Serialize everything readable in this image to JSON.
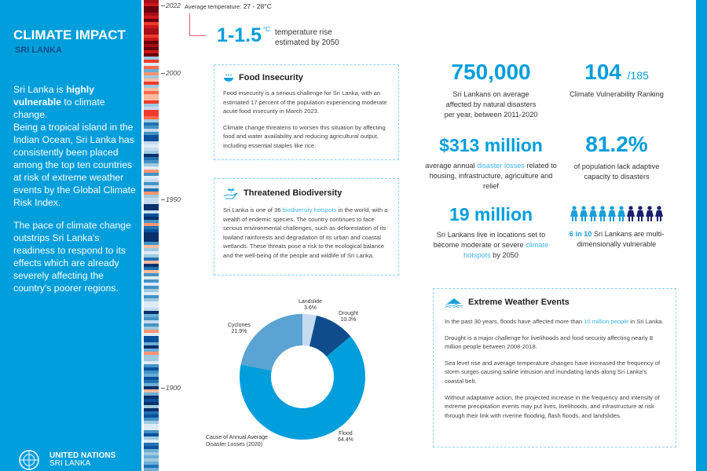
{
  "left": {
    "title": "CLIMATE IMPACT",
    "subtitle": "SRI LANKA",
    "p1_a": "Sri Lanka is ",
    "p1_b": "highly vulnerable",
    "p1_c": " to climate change.",
    "p2": "Being a tropical island in the Indian Ocean, Sri Lanka has consistently been placed among the top ten countries at risk of extreme weather events by the Global Climate Risk Index.",
    "p3": "The pace of climate change outstrips Sri Lanka's readiness to respond to its effects which are already severely affecting the country's poorer regions.",
    "logo_line1": "UNITED NATIONS",
    "logo_line2": "SRI LANKA"
  },
  "stripes": {
    "year_labels": [
      "2022",
      "2000",
      "1950",
      "1900"
    ],
    "avg_label": "Average temperature:",
    "avg_value": "27 - 28°C"
  },
  "rise": {
    "value": "1-1.5",
    "unit": "°C",
    "line1": "temperature rise",
    "line2": "estimated by 2050"
  },
  "food": {
    "title": "Food Insecurity",
    "p1": "Food insecurity is a serious challenge for Sri Lanka, with an estimated 17 percent of the population experiencing moderate acute food insecurity in March 2023.",
    "p2": "Climate change threatens to worsen this situation by affecting food and water availability and reducing agricultural output, including essential staples like rice."
  },
  "bio": {
    "title": "Threatened Biodiversity",
    "a": "Sri Lanka is one of 36 ",
    "link": "biodiversity hotspots",
    "b": " in the world, with a wealth of endemic species. The country continues to face serious environmental challenges, such as deforestation of its lowland rainforests and degradation of its urban and coastal wetlands. These threats pose a risk to the ecological balance and the well-being of the people and wildlife of Sri Lanka."
  },
  "stats": {
    "affected": {
      "value": "750,000",
      "text": "Sri Lankans on average affected by natural disasters per year, between 2011-2020"
    },
    "rank": {
      "value": "104",
      "of": "/185",
      "text": "Climate Vulnerability Ranking"
    },
    "losses": {
      "value": "$313 million",
      "a": "average annual ",
      "link": "disaster losses",
      "b": " related to housing, infrastructure, agriculture and relief"
    },
    "adaptive": {
      "value": "81.2%",
      "text": "of population lack adaptive capacity to disasters"
    },
    "hotspots": {
      "value": "19 million",
      "a": "Sri Lankans live in locations set to become moderate or severe ",
      "link": "climate hotspots",
      "b": " by 2050"
    },
    "vulnerable": {
      "bold": "6 in 10",
      "text": " Sri Lankans are multi-dimensionally vulnerable",
      "highlighted": 6,
      "total": 10,
      "colors": [
        "#1a9fd8",
        "#1b1f6e"
      ]
    }
  },
  "weather": {
    "title": "Extreme Weather Events",
    "p1_a": "In the past 30 years, floods have affected more than ",
    "p1_link": "10 million people",
    "p1_b": " in Sri Lanka.",
    "p2": "Drought is a major challenge for livelihoods and food security affecting nearly 8 million people between 2008-2018.",
    "p3": "Sea level rise and average temperature changes have increased the frequency of storm surges causing saline intrusion and inundating lands along Sri Lanka's coastal belt.",
    "p4": "Without adaptative action, the projected increase in the frequency and intensity of extreme precipitation events may put lives, livelihoods, and infrastructure at risk through their link with riverine flooding, flash floods, and landslides."
  },
  "chart_data": {
    "type": "pie",
    "variant": "donut",
    "title": "Cause of Annual Average Disaster Losses (2020)",
    "slices": [
      {
        "label": "Landslide",
        "value": 3.6,
        "display": "3.6%",
        "color": "#c5dcef"
      },
      {
        "label": "Drought",
        "value": 10.3,
        "display": "10.3%",
        "color": "#0f4c8c"
      },
      {
        "label": "Flood",
        "value": 64.4,
        "display": "64.4%",
        "color": "#009edb"
      },
      {
        "label": "Cyclones",
        "value": 21.9,
        "display": "21.9%",
        "color": "#5ba3d3"
      }
    ]
  }
}
